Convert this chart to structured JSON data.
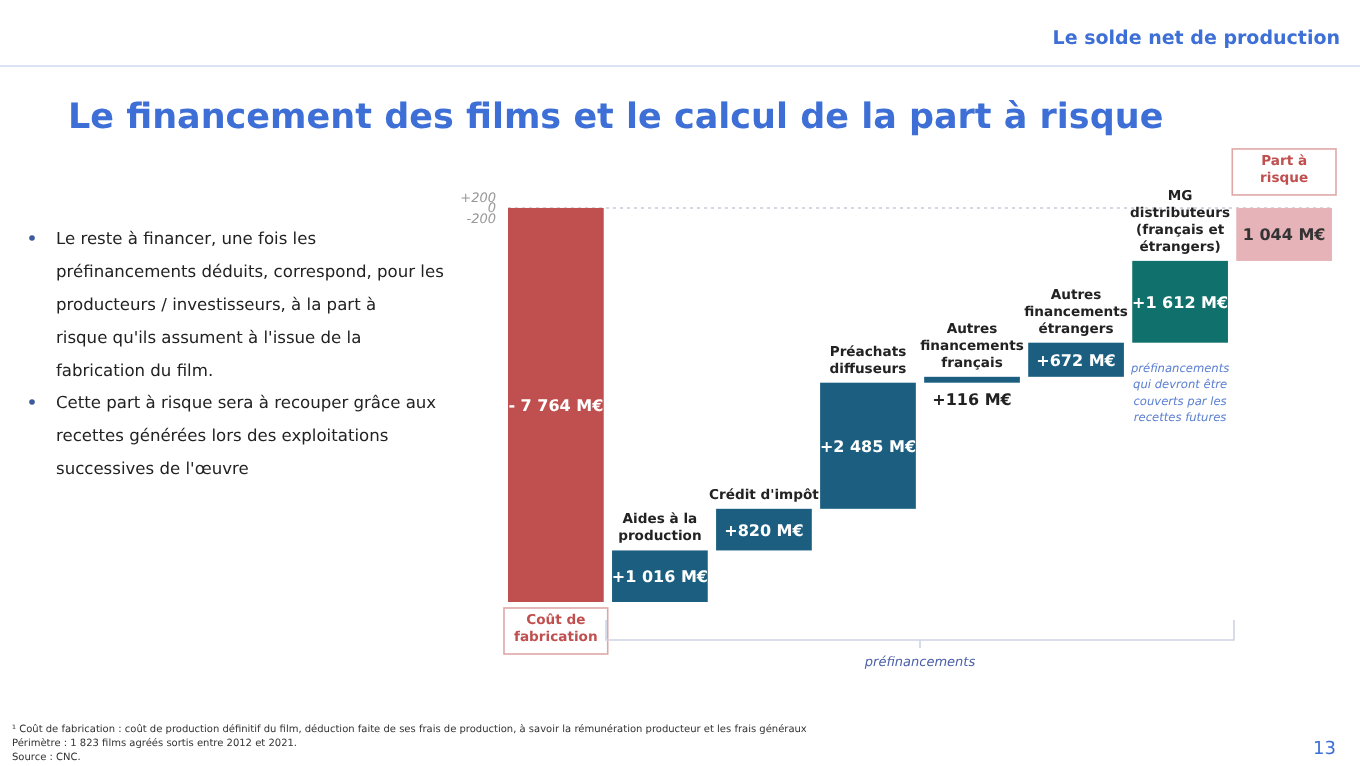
{
  "chart_data": {
    "type": "bar",
    "title": "Le financement des films et le calcul de la part à risque",
    "categories": [
      "Coût de fabrication",
      "Aides à la production",
      "Crédit d'impôt",
      "Préachats diffuseurs",
      "Autres financements français",
      "Autres financements étrangers",
      "MG distributeurs (français et étrangers)",
      "Part à risque"
    ],
    "values": [
      -7764,
      1016,
      820,
      2485,
      116,
      672,
      1612,
      1044
    ],
    "base": [
      0,
      -7764,
      -6748,
      -5928,
      -3443,
      -3327,
      -2655,
      -1044
    ],
    "colors": [
      "#c0504f",
      "#1b5e80",
      "#1b5e80",
      "#1b5e80",
      "#1b5e80",
      "#1b5e80",
      "#10706b",
      "#e6b3b8"
    ],
    "value_labels": [
      "- 7 764 M€",
      "+1 016 M€",
      "+820 M€",
      "+2 485 M€",
      "+116 M€",
      "+672 M€",
      "+1 612 M€",
      "1 044 M€"
    ],
    "ylim": [
      -7764,
      200
    ],
    "yticks": [
      {
        "value": 200,
        "label": "+200"
      },
      0,
      {
        "value": -200,
        "label": "-200"
      }
    ],
    "ref_lines": [
      {
        "axis": "y",
        "value": 0,
        "line_style": "dotted",
        "color": "#c8ccd8"
      }
    ],
    "annotations": [
      "Le solde net de production",
      "Le reste à financer, une fois les préfinancements déduits, correspond, pour les producteurs / investisseurs, à la part à risque qu'ils assument à l'issue de la fabrication du film.",
      "Cette part à risque sera à recouper grâce aux recettes générées lors des exploitations successives de l'œuvre",
      "préfinancements",
      "préfinancements qui devront être couverts par les recettes futures",
      "¹ Coût de fabrication :  coût de production définitif du film, déduction faite de ses frais de production, à savoir la rémunération producteur et les frais généraux",
      "Périmètre : 1 823 films agréés sortis entre 2012 et 2021.",
      "Source : CNC.",
      "13"
    ]
  }
}
